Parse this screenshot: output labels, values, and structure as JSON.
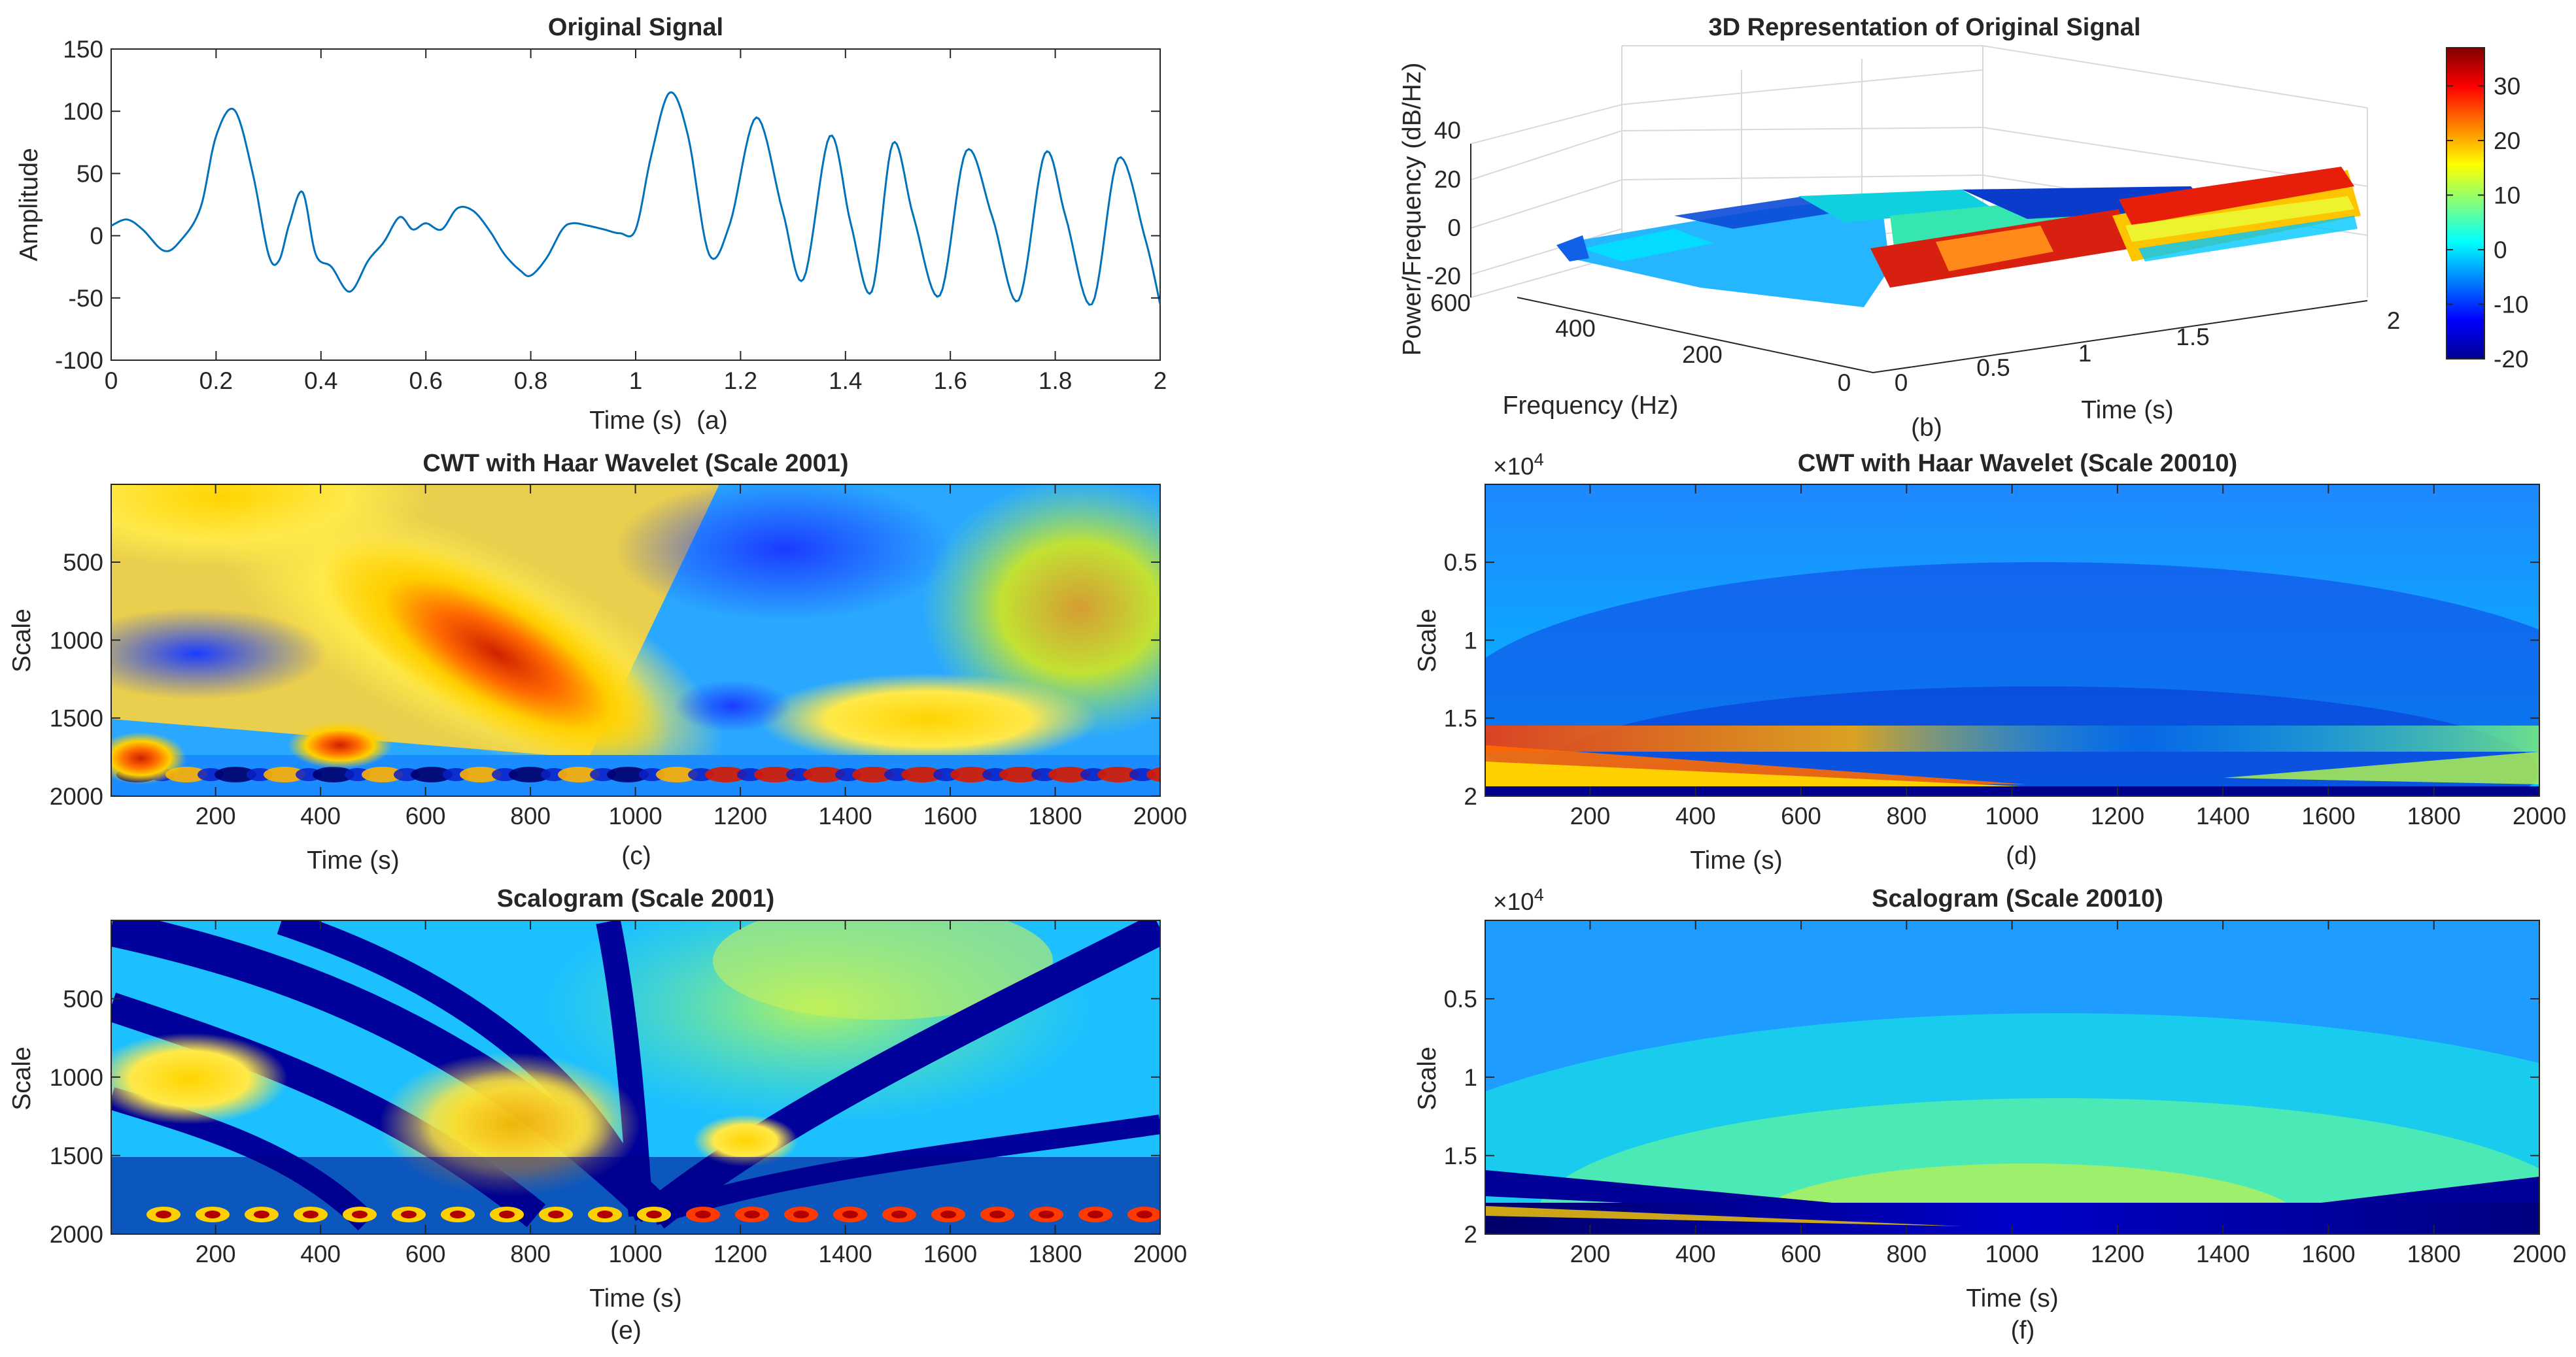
{
  "chart_data": [
    {
      "id": "a",
      "type": "line",
      "title": "Original Signal",
      "xlabel": "Time (s)",
      "ylabel": "Amplitude",
      "panel_label": "(a)",
      "xlim": [
        0,
        2
      ],
      "ylim": [
        -100,
        150
      ],
      "xticks": [
        "0",
        "0.2",
        "0.4",
        "0.6",
        "0.8",
        "1",
        "1.2",
        "1.4",
        "1.6",
        "1.8",
        "2"
      ],
      "yticks": [
        "-100",
        "-50",
        "0",
        "50",
        "100",
        "150"
      ],
      "color": "#0072BD",
      "series": [
        {
          "name": "signal",
          "x": [
            0,
            0.03,
            0.06,
            0.1,
            0.13,
            0.17,
            0.2,
            0.235,
            0.27,
            0.3,
            0.32,
            0.34,
            0.365,
            0.39,
            0.42,
            0.455,
            0.49,
            0.52,
            0.55,
            0.575,
            0.6,
            0.63,
            0.66,
            0.69,
            0.72,
            0.75,
            0.78,
            0.8,
            0.83,
            0.86,
            0.88,
            0.91,
            0.94,
            0.97,
            1.0,
            1.03,
            1.065,
            1.1,
            1.14,
            1.18,
            1.23,
            1.28,
            1.32,
            1.37,
            1.41,
            1.45,
            1.49,
            1.53,
            1.58,
            1.63,
            1.68,
            1.73,
            1.78,
            1.82,
            1.87,
            1.92,
            1.97,
            2.0
          ],
          "y": [
            8,
            13,
            5,
            -12,
            -5,
            22,
            80,
            101,
            50,
            -15,
            -20,
            10,
            35,
            -15,
            -25,
            -45,
            -20,
            -5,
            15,
            5,
            10,
            5,
            22,
            20,
            5,
            -15,
            -28,
            -32,
            -18,
            5,
            10,
            8,
            5,
            2,
            5,
            65,
            115,
            80,
            -15,
            10,
            95,
            20,
            -35,
            80,
            10,
            -45,
            74,
            15,
            -48,
            68,
            15,
            -52,
            66,
            15,
            -55,
            62,
            0,
            -55
          ]
        }
      ]
    },
    {
      "id": "b",
      "type": "surface",
      "title": "3D Representation of Original Signal",
      "xlabel": "Time (s)",
      "ylabel": "Frequency (Hz)",
      "zlabel": "Power/Frequency (dB/Hz)",
      "panel_label": "(b)",
      "time_ticks": [
        "0",
        "0.5",
        "1",
        "1.5",
        "2"
      ],
      "freq_ticks": [
        "600",
        "400",
        "200",
        "0"
      ],
      "z_ticks": [
        "-20",
        "0",
        "20",
        "40"
      ],
      "colorbar": {
        "clim": [
          -20,
          37
        ],
        "ticks": [
          "30",
          "20",
          "10",
          "0",
          "-10",
          "-20"
        ],
        "colormap": "jet"
      },
      "zlim": [
        -20,
        45
      ]
    },
    {
      "id": "c",
      "type": "heatmap",
      "title": "CWT with Haar Wavelet (Scale 2001)",
      "xlabel": "Time (s)",
      "ylabel": "Scale",
      "panel_label": "(c)",
      "xlim": [
        1,
        2000
      ],
      "ylim": [
        1,
        2001
      ],
      "xticks": [
        "200",
        "400",
        "600",
        "800",
        "1000",
        "1200",
        "1400",
        "1600",
        "1800",
        "2000"
      ],
      "yticks": [
        "500",
        "1000",
        "1500",
        "2000"
      ],
      "colormap": "jet"
    },
    {
      "id": "d",
      "type": "heatmap",
      "title": "CWT with Haar Wavelet (Scale 20010)",
      "xlabel": "Time (s)",
      "ylabel": "Scale",
      "panel_label": "(d)",
      "exponent_label": "×10",
      "exponent_power": "4",
      "xlim": [
        1,
        2000
      ],
      "ylim": [
        1,
        20010
      ],
      "xticks": [
        "200",
        "400",
        "600",
        "800",
        "1000",
        "1200",
        "1400",
        "1600",
        "1800",
        "2000"
      ],
      "yticks": [
        "0.5",
        "1",
        "1.5",
        "2"
      ],
      "colormap": "jet"
    },
    {
      "id": "e",
      "type": "heatmap",
      "title": "Scalogram (Scale 2001)",
      "xlabel": "Time (s)",
      "ylabel": "Scale",
      "panel_label": "(e)",
      "xlim": [
        1,
        2000
      ],
      "ylim": [
        1,
        2001
      ],
      "xticks": [
        "200",
        "400",
        "600",
        "800",
        "1000",
        "1200",
        "1400",
        "1600",
        "1800",
        "2000"
      ],
      "yticks": [
        "500",
        "1000",
        "1500",
        "2000"
      ],
      "colormap": "jet"
    },
    {
      "id": "f",
      "type": "heatmap",
      "title": "Scalogram (Scale 20010)",
      "xlabel": "Time (s)",
      "ylabel": "Scale",
      "panel_label": "(f)",
      "exponent_label": "×10",
      "exponent_power": "4",
      "xlim": [
        1,
        2000
      ],
      "ylim": [
        1,
        20010
      ],
      "xticks": [
        "200",
        "400",
        "600",
        "800",
        "1000",
        "1200",
        "1400",
        "1600",
        "1800",
        "2000"
      ],
      "yticks": [
        "0.5",
        "1",
        "1.5",
        "2"
      ],
      "colormap": "jet"
    }
  ]
}
